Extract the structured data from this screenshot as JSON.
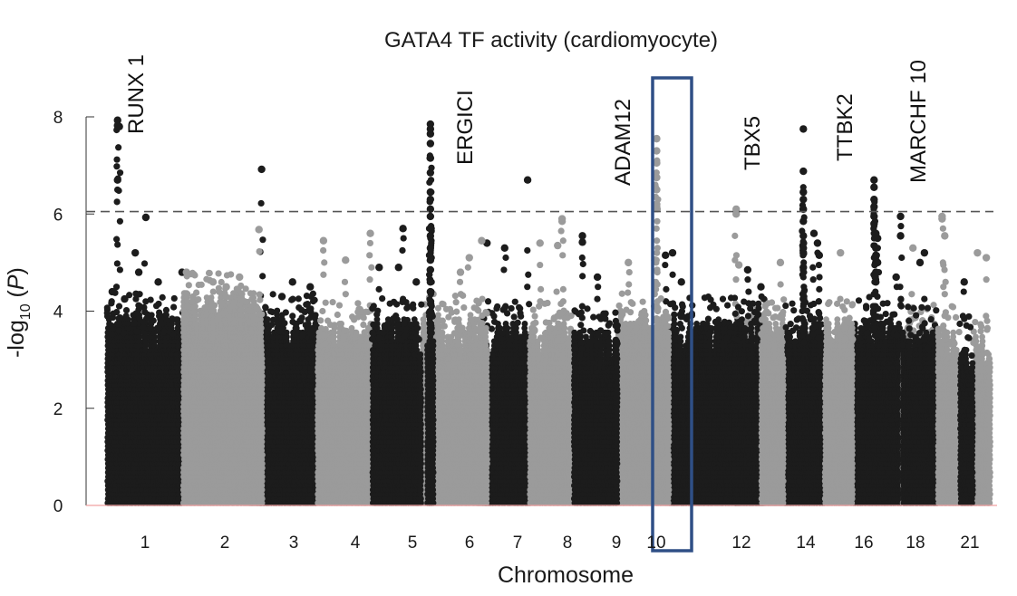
{
  "chart_data": {
    "type": "scatter",
    "subtype": "manhattan",
    "title": "GATA4 TF activity (cardiomyocyte)",
    "xlabel": "Chromosome",
    "ylabel": "-log10 (P)",
    "ylabel_parts": {
      "prefix": "-log",
      "subscript": "10",
      "mid": " (",
      "italic": "P",
      "suffix": ")"
    },
    "ylim": [
      0,
      8.3
    ],
    "yticks": [
      0,
      2,
      4,
      6,
      8
    ],
    "xticks": [
      "1",
      "2",
      "3",
      "4",
      "5",
      "6",
      "7",
      "8",
      "9",
      "10",
      "12",
      "14",
      "16",
      "18",
      "21"
    ],
    "significance_threshold": 6.05,
    "highlighted_chromosome": "10",
    "colors": {
      "dark": "#1c1c1c",
      "light": "#9b9b9b",
      "highlight_box": "#2f4f86",
      "baseline": "#f0a0a0",
      "threshold": "#555555",
      "label_default": "#111111",
      "label_highlight": "#b01c1c"
    },
    "chromosomes": [
      {
        "chr": "1",
        "start": 0,
        "end": 86,
        "color": "dark",
        "base": 3.5,
        "peaks": [
          {
            "x": 12,
            "y": 7.93
          },
          {
            "x": 12,
            "y": 7.82
          },
          {
            "x": 14,
            "y": 7.8
          },
          {
            "x": 12,
            "y": 6.7
          },
          {
            "x": 44,
            "y": 5.93
          },
          {
            "x": 32,
            "y": 5.2
          },
          {
            "x": 36,
            "y": 4.8
          },
          {
            "x": 58,
            "y": 4.6
          },
          {
            "x": 85,
            "y": 4.8
          },
          {
            "x": 6,
            "y": 4.4
          },
          {
            "x": 20,
            "y": 4.25
          }
        ]
      },
      {
        "chr": "2",
        "start": 86,
        "end": 170,
        "color": "light",
        "base": 3.9,
        "peaks": [
          {
            "x": 90,
            "y": 4.8
          },
          {
            "x": 120,
            "y": 4.6
          },
          {
            "x": 150,
            "y": 4.7
          },
          {
            "x": 135,
            "y": 4.5
          }
        ]
      },
      {
        "chr": "3",
        "start": 170,
        "end": 238,
        "color": "dark",
        "base": 3.5,
        "peaks": [
          {
            "x": 175,
            "y": 6.92
          },
          {
            "x": 210,
            "y": 4.6
          },
          {
            "x": 230,
            "y": 4.5
          },
          {
            "x": 198,
            "y": 4.3
          }
        ]
      },
      {
        "chr": "3b",
        "start": 160,
        "end": 176,
        "color": "light",
        "base": 3.6,
        "peaks": [
          {
            "x": 172,
            "y": 5.68
          }
        ]
      },
      {
        "chr": "4",
        "start": 238,
        "end": 300,
        "color": "light",
        "base": 3.3,
        "peaks": [
          {
            "x": 245,
            "y": 5.45
          },
          {
            "x": 270,
            "y": 5.05
          },
          {
            "x": 298,
            "y": 5.6
          }
        ]
      },
      {
        "chr": "5",
        "start": 300,
        "end": 356,
        "color": "dark",
        "base": 3.4,
        "peaks": [
          {
            "x": 335,
            "y": 5.7
          },
          {
            "x": 330,
            "y": 4.9
          },
          {
            "x": 308,
            "y": 4.9
          },
          {
            "x": 350,
            "y": 4.6
          }
        ]
      },
      {
        "chr": "6",
        "start": 356,
        "end": 425,
        "color": "light",
        "base": 3.5,
        "peaks": [
          {
            "x": 410,
            "y": 5.1
          },
          {
            "x": 400,
            "y": 4.8
          }
        ]
      },
      {
        "chr": "6peak",
        "start": 362,
        "end": 370,
        "color": "dark",
        "base": 3.5,
        "peaks": [
          {
            "x": 366,
            "y": 7.85
          },
          {
            "x": 366,
            "y": 7.75
          },
          {
            "x": 366,
            "y": 7.65
          },
          {
            "x": 366,
            "y": 7.45
          },
          {
            "x": 366,
            "y": 7.15
          },
          {
            "x": 366,
            "y": 6.85
          },
          {
            "x": 366,
            "y": 6.45
          },
          {
            "x": 366,
            "y": 6.3
          },
          {
            "x": 366,
            "y": 6.1
          },
          {
            "x": 366,
            "y": 5.95
          },
          {
            "x": 366,
            "y": 5.55
          },
          {
            "x": 366,
            "y": 5.3
          },
          {
            "x": 366,
            "y": 5.05
          },
          {
            "x": 366,
            "y": 4.85
          },
          {
            "x": 366,
            "y": 4.6
          },
          {
            "x": 366,
            "y": 4.4
          }
        ]
      },
      {
        "chr": "7",
        "start": 425,
        "end": 478,
        "color": "dark",
        "base": 3.3,
        "peaks": [
          {
            "x": 430,
            "y": 5.4
          },
          {
            "x": 450,
            "y": 5.3
          },
          {
            "x": 476,
            "y": 6.7
          }
        ]
      },
      {
        "chr": "7b",
        "start": 418,
        "end": 430,
        "color": "light",
        "base": 3.6,
        "peaks": [
          {
            "x": 424,
            "y": 5.45
          }
        ]
      },
      {
        "chr": "8",
        "start": 478,
        "end": 528,
        "color": "light",
        "base": 3.3,
        "peaks": [
          {
            "x": 515,
            "y": 5.85
          },
          {
            "x": 490,
            "y": 5.4
          },
          {
            "x": 510,
            "y": 5.35
          },
          {
            "x": 515,
            "y": 5.9
          }
        ]
      },
      {
        "chr": "9",
        "start": 528,
        "end": 578,
        "color": "dark",
        "base": 3.2,
        "peaks": [
          {
            "x": 538,
            "y": 5.55
          },
          {
            "x": 538,
            "y": 5.42
          },
          {
            "x": 555,
            "y": 4.7
          }
        ]
      },
      {
        "chr": "10",
        "start": 578,
        "end": 636,
        "color": "light",
        "base": 3.5,
        "peaks": [
          {
            "x": 622,
            "y": 7.55
          },
          {
            "x": 622,
            "y": 7.3
          },
          {
            "x": 622,
            "y": 7.05
          },
          {
            "x": 622,
            "y": 6.75
          },
          {
            "x": 622,
            "y": 6.5
          },
          {
            "x": 622,
            "y": 6.2
          },
          {
            "x": 622,
            "y": 6.15
          },
          {
            "x": 620,
            "y": 5.05
          },
          {
            "x": 590,
            "y": 5.0
          }
        ]
      },
      {
        "chr": "11",
        "start": 636,
        "end": 714,
        "color": "dark",
        "base": 3.4,
        "peaks": [
          {
            "x": 632,
            "y": 5.15
          },
          {
            "x": 640,
            "y": 5.2
          },
          {
            "x": 650,
            "y": 4.6
          }
        ]
      },
      {
        "chr": "12",
        "start": 714,
        "end": 766,
        "color": "light",
        "base": 3.4,
        "peaks": [
          {
            "x": 712,
            "y": 6.1
          },
          {
            "x": 712,
            "y": 6.0
          },
          {
            "x": 715,
            "y": 4.95
          }
        ]
      },
      {
        "chr": "13",
        "start": 710,
        "end": 744,
        "color": "dark",
        "base": 3.4,
        "peaks": [
          {
            "x": 725,
            "y": 4.85
          },
          {
            "x": 740,
            "y": 4.5
          }
        ]
      },
      {
        "chr": "14",
        "start": 766,
        "end": 812,
        "color": "dark",
        "base": 3.3,
        "peaks": [
          {
            "x": 788,
            "y": 7.75
          },
          {
            "x": 788,
            "y": 6.88
          },
          {
            "x": 788,
            "y": 6.45
          },
          {
            "x": 788,
            "y": 6.3
          },
          {
            "x": 788,
            "y": 6.1
          },
          {
            "x": 788,
            "y": 5.85
          },
          {
            "x": 788,
            "y": 5.55
          },
          {
            "x": 788,
            "y": 5.3
          },
          {
            "x": 788,
            "y": 5.2
          },
          {
            "x": 788,
            "y": 4.9
          },
          {
            "x": 800,
            "y": 5.6
          },
          {
            "x": 804,
            "y": 5.4
          },
          {
            "x": 806,
            "y": 5.15
          }
        ]
      },
      {
        "chr": "15",
        "start": 740,
        "end": 766,
        "color": "light",
        "base": 3.3,
        "peaks": [
          {
            "x": 762,
            "y": 5.0
          }
        ]
      },
      {
        "chr": "16",
        "start": 812,
        "end": 844,
        "color": "light",
        "base": 3.4,
        "peaks": [
          {
            "x": 830,
            "y": 5.2
          }
        ]
      },
      {
        "chr": "17",
        "start": 844,
        "end": 900,
        "color": "dark",
        "base": 3.4,
        "peaks": [
          {
            "x": 868,
            "y": 6.7
          },
          {
            "x": 868,
            "y": 6.55
          },
          {
            "x": 868,
            "y": 6.3
          },
          {
            "x": 868,
            "y": 6.15
          },
          {
            "x": 868,
            "y": 5.95
          },
          {
            "x": 868,
            "y": 5.8
          },
          {
            "x": 870,
            "y": 5.6
          },
          {
            "x": 872,
            "y": 5.5
          },
          {
            "x": 870,
            "y": 5.3
          },
          {
            "x": 870,
            "y": 5.15
          },
          {
            "x": 872,
            "y": 5.0
          },
          {
            "x": 870,
            "y": 4.8
          },
          {
            "x": 870,
            "y": 4.6
          },
          {
            "x": 898,
            "y": 5.95
          },
          {
            "x": 898,
            "y": 5.55
          },
          {
            "x": 893,
            "y": 4.7
          }
        ]
      },
      {
        "chr": "18",
        "start": 900,
        "end": 940,
        "color": "light",
        "base": 3.3,
        "peaks": [
          {
            "x": 912,
            "y": 5.3
          }
        ]
      },
      {
        "chr": "19",
        "start": 900,
        "end": 940,
        "color": "dark",
        "base": 3.2,
        "peaks": [
          {
            "x": 925,
            "y": 5.2
          },
          {
            "x": 920,
            "y": 5.0
          }
        ]
      },
      {
        "chr": "20",
        "start": 940,
        "end": 965,
        "color": "light",
        "base": 3.2,
        "peaks": [
          {
            "x": 945,
            "y": 5.9
          },
          {
            "x": 945,
            "y": 5.95
          },
          {
            "x": 948,
            "y": 5.55
          }
        ]
      },
      {
        "chr": "21",
        "start": 965,
        "end": 980,
        "color": "dark",
        "base": 3.0,
        "peaks": [
          {
            "x": 970,
            "y": 4.6
          }
        ]
      },
      {
        "chr": "22",
        "start": 980,
        "end": 1000,
        "color": "light",
        "base": 3.1,
        "peaks": [
          {
            "x": 985,
            "y": 5.2
          },
          {
            "x": 995,
            "y": 5.1
          }
        ]
      }
    ],
    "annotations": [
      {
        "label": "RUNX 1",
        "x": 40,
        "highlight": false
      },
      {
        "label": "ERGICI",
        "x": 388,
        "highlight": false
      },
      {
        "label": "ADAM12",
        "x": 555,
        "highlight": true
      },
      {
        "label": "TBX5",
        "x": 700,
        "highlight": false
      },
      {
        "label": "TTBK2",
        "x": 798,
        "highlight": false
      },
      {
        "label": "MARCHF 10",
        "x": 873,
        "highlight": false
      }
    ]
  }
}
